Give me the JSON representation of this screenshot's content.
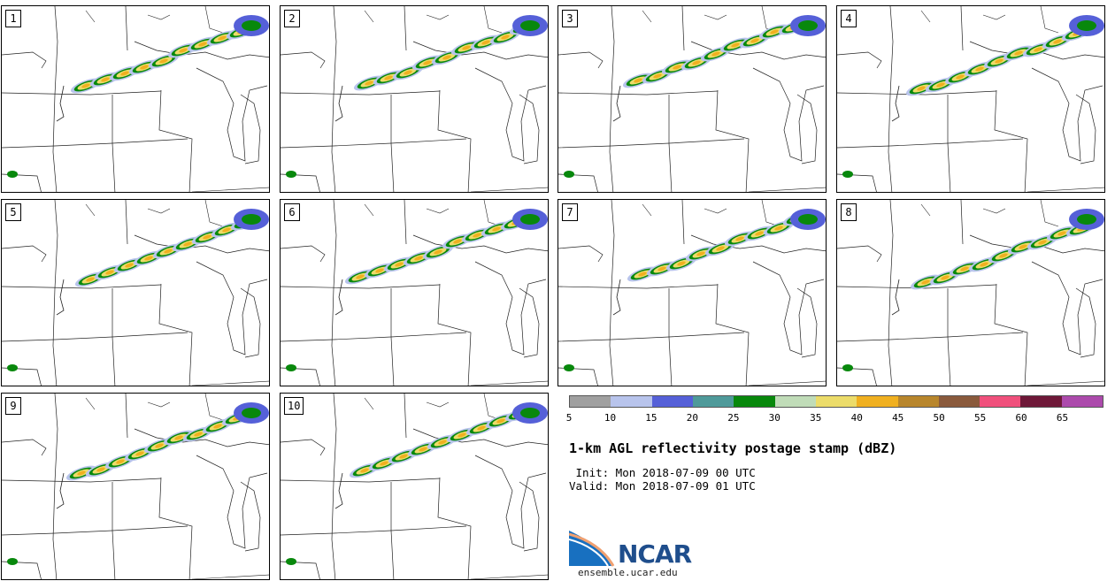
{
  "panels": [
    {
      "label": "1"
    },
    {
      "label": "2"
    },
    {
      "label": "3"
    },
    {
      "label": "4"
    },
    {
      "label": "5"
    },
    {
      "label": "6"
    },
    {
      "label": "7"
    },
    {
      "label": "8"
    },
    {
      "label": "9"
    },
    {
      "label": "10"
    }
  ],
  "colorbar": {
    "colors": [
      "#a0a0a0",
      "#b8c4ec",
      "#5560d8",
      "#4f9a9a",
      "#08880c",
      "#c0dcb8",
      "#ecdc6a",
      "#f0b020",
      "#b8862c",
      "#8a5a3c",
      "#f0507c",
      "#6e1838",
      "#ac4aac"
    ],
    "ticks": [
      "5",
      "10",
      "15",
      "20",
      "25",
      "30",
      "35",
      "40",
      "45",
      "50",
      "55",
      "60",
      "65"
    ]
  },
  "title": "1-km AGL reflectivity postage stamp (dBZ)",
  "init": " Init: Mon 2018-07-09 00 UTC",
  "valid": "Valid: Mon 2018-07-09 01 UTC",
  "logo": {
    "name": "NCAR",
    "url": "ensemble.ucar.edu"
  }
}
